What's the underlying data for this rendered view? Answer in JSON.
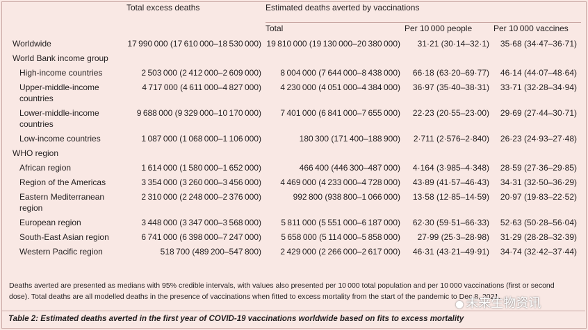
{
  "headers": {
    "excess": "Total excess deaths",
    "averted": "Estimated deaths averted by vaccinations",
    "total": "Total",
    "per_people": "Per 10 000 people",
    "per_vaccines": "Per 10 000 vaccines"
  },
  "rows": [
    {
      "type": "row",
      "label": "Worldwide",
      "indent": false,
      "excess": "17 990 000 (17 610 000–18 530 000)",
      "total": "19 810 000 (19 130 000–20 380 000)",
      "per_people": "31·21 (30·14–32·1)",
      "per_vaccines": "35·68 (34·47–36·71)"
    },
    {
      "type": "group",
      "label": "World Bank income group"
    },
    {
      "type": "row",
      "label": "High-income countries",
      "indent": true,
      "excess": "2 503 000 (2 412 000–2 609 000)",
      "total": "8 004 000 (7 644 000–8 438 000)",
      "per_people": "66·18 (63·20–69·77)",
      "per_vaccines": "46·14 (44·07–48·64)"
    },
    {
      "type": "row",
      "label": "Upper-middle-income countries",
      "indent": true,
      "tall": true,
      "excess": "4 717 000 (4 611 000–4 827 000)",
      "total": "4 230 000 (4 051 000–4 384 000)",
      "per_people": "36·97 (35·40–38·31)",
      "per_vaccines": "33·71 (32·28–34·94)"
    },
    {
      "type": "row",
      "label": "Lower-middle-income countries",
      "indent": true,
      "tall": true,
      "excess": "9 688 000 (9 329 000–10 170 000)",
      "total": "7 401 000 (6 841 000–7 655 000)",
      "per_people": "22·23 (20·55–23·00)",
      "per_vaccines": "29·69 (27·44–30·71)"
    },
    {
      "type": "row",
      "label": "Low-income countries",
      "indent": true,
      "excess": "1 087 000 (1 068 000–1 106 000)",
      "total": "180 300 (171 400–188 900)",
      "per_people": "2·711 (2·576–2·840)",
      "per_vaccines": "26·23 (24·93–27·48)"
    },
    {
      "type": "group",
      "label": "WHO region"
    },
    {
      "type": "row",
      "label": "African region",
      "indent": true,
      "excess": "1 614 000 (1 580 000–1 652 000)",
      "total": "466 400 (446 300–487 000)",
      "per_people": "4·164 (3·985–4·348)",
      "per_vaccines": "28·59 (27·36–29·85)"
    },
    {
      "type": "row",
      "label": "Region of the Americas",
      "indent": true,
      "excess": "3 354 000 (3 260 000–3 456 000)",
      "total": "4 469 000 (4 233 000–4 728 000)",
      "per_people": "43·89 (41·57–46·43)",
      "per_vaccines": "34·31 (32·50–36·29)"
    },
    {
      "type": "row",
      "label": "Eastern Mediterranean region",
      "indent": true,
      "tall": true,
      "excess": "2 310 000 (2 248 000–2 376 000)",
      "total": "992 800 (938 800–1 066 000)",
      "per_people": "13·58 (12·85–14·59)",
      "per_vaccines": "20·97 (19·83–22·52)"
    },
    {
      "type": "row",
      "label": "European region",
      "indent": true,
      "excess": "3 448 000 (3 347 000–3 568 000)",
      "total": "5 811 000 (5 551 000–6 187 000)",
      "per_people": "62·30 (59·51–66·33)",
      "per_vaccines": "52·63 (50·28–56·04)"
    },
    {
      "type": "row",
      "label": "South-East Asian region",
      "indent": true,
      "excess": "6 741 000 (6 398 000–7 247 000)",
      "total": "5 658 000 (5 114 000–5 858 000)",
      "per_people": "27·99 (25·3–28·98)",
      "per_vaccines": "31·29 (28·28–32·39)"
    },
    {
      "type": "row",
      "label": "Western Pacific region",
      "indent": true,
      "excess": "518 700 (489 200–547 800)",
      "total": "2 429 000 (2 266 000–2 617 000)",
      "per_people": "46·31 (43·21–49·91)",
      "per_vaccines": "34·74 (32·42–37·44)"
    }
  ],
  "footnote": "Deaths averted are presented as medians with 95% credible intervals, with values also presented per 10 000 total population and per 10 000 vaccinations (first or second dose). Total deaths are all modelled deaths in the presence of vaccinations when fitted to excess mortality from the start of the pandemic to Dec 8, 2021.",
  "caption_label": "Table 2:",
  "caption_text": " Estimated deaths averted in the first year of COVID-19 vaccinations worldwide based on fits to excess mortality",
  "watermark": "未来生物资讯"
}
